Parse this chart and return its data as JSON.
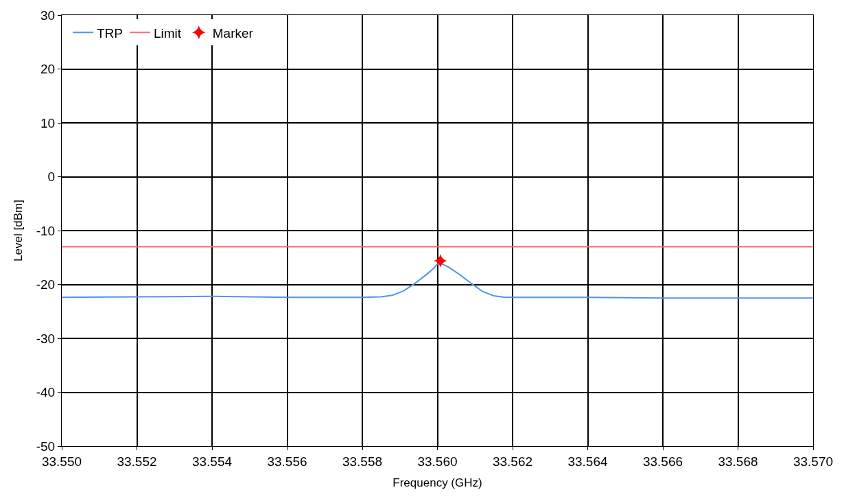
{
  "chart_data": {
    "type": "line",
    "xlabel": "Frequency (GHz)",
    "ylabel": "Level [dBm]",
    "xlim": [
      33.55,
      33.57
    ],
    "xticks": [
      {
        "value": 33.55,
        "label": "33.550"
      },
      {
        "value": 33.552,
        "label": "33.552"
      },
      {
        "value": 33.554,
        "label": "33.554"
      },
      {
        "value": 33.556,
        "label": "33.556"
      },
      {
        "value": 33.558,
        "label": "33.558"
      },
      {
        "value": 33.56,
        "label": "33.560"
      },
      {
        "value": 33.562,
        "label": "33.562"
      },
      {
        "value": 33.564,
        "label": "33.564"
      },
      {
        "value": 33.566,
        "label": "33.566"
      },
      {
        "value": 33.568,
        "label": "33.568"
      },
      {
        "value": 33.57,
        "label": "33.570"
      }
    ],
    "ylim": [
      -50,
      30
    ],
    "yticks": [
      -50,
      -40,
      -30,
      -20,
      -10,
      0,
      10,
      20,
      30
    ],
    "grid": true,
    "legend": "top left",
    "series": [
      {
        "name": "TRP",
        "color": "#4f94ef",
        "x": [
          33.55,
          33.552,
          33.554,
          33.556,
          33.558,
          33.5585,
          33.5588,
          33.5591,
          33.5594,
          33.5597,
          33.5599,
          33.56,
          33.56005,
          33.5601,
          33.5603,
          33.5606,
          33.5609,
          33.5612,
          33.5615,
          33.5618,
          33.562,
          33.564,
          33.566,
          33.568,
          33.57
        ],
        "values": [
          -22.4,
          -22.3,
          -22.2,
          -22.4,
          -22.4,
          -22.3,
          -22.0,
          -21.2,
          -19.8,
          -18.2,
          -17.0,
          -16.2,
          -15.9,
          -16.1,
          -16.8,
          -18.2,
          -19.8,
          -21.3,
          -22.1,
          -22.4,
          -22.4,
          -22.4,
          -22.5,
          -22.5,
          -22.5
        ]
      },
      {
        "name": "Limit",
        "color": "#ff6b6b",
        "x": [
          33.55,
          33.57
        ],
        "values": [
          -13,
          -13
        ]
      },
      {
        "name": "Marker",
        "type": "scatter",
        "marker": "star",
        "color": "#ff0000",
        "x": [
          33.56008
        ],
        "values": [
          -15.6
        ]
      }
    ]
  }
}
